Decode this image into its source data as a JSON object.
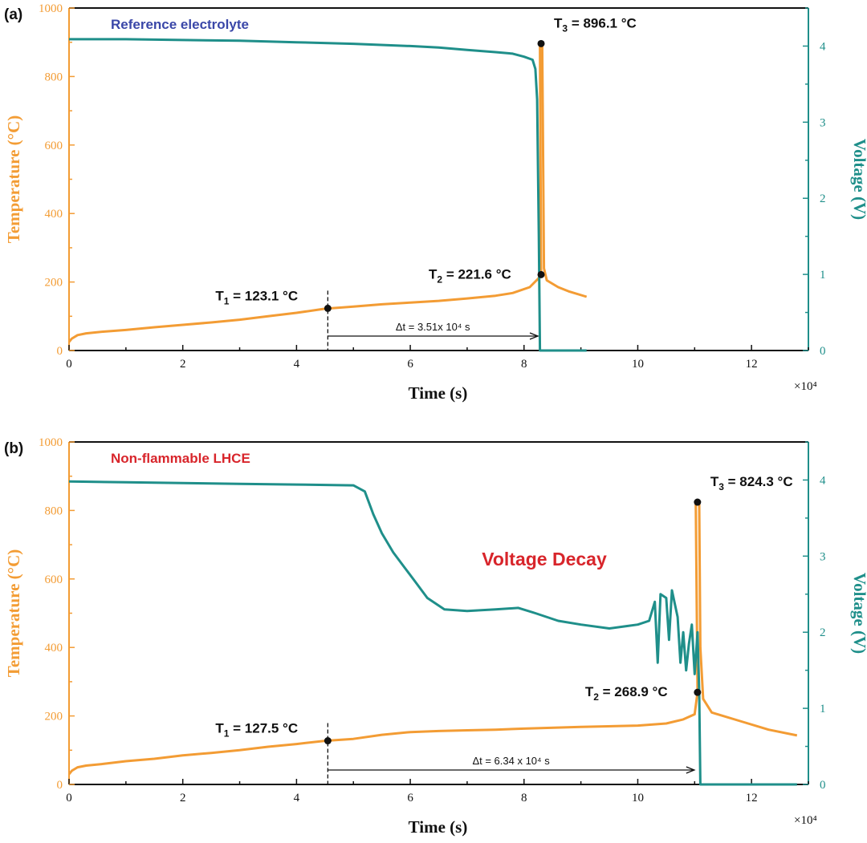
{
  "colors": {
    "temperature": "#f39c34",
    "voltage": "#1f8f8a",
    "axis": "#111111",
    "title_a": "#3a47a8",
    "title_b": "#d8252b",
    "voltage_decay": "#d8252b"
  },
  "chart_data": [
    {
      "type": "line",
      "panel_label": "(a)",
      "title": "Reference electrolyte",
      "xlabel": "Time (s)",
      "x_multiplier": "×10⁴",
      "ylabel_left": "Temperature (°C)",
      "ylabel_right": "Voltage (V)",
      "xlim": [
        0,
        13
      ],
      "ylim_left": [
        0,
        1000
      ],
      "ylim_right": [
        0,
        4.5
      ],
      "x_ticks": [
        "0",
        "2",
        "4",
        "6",
        "8",
        "10",
        "12"
      ],
      "y_left_ticks": [
        "0",
        "200",
        "400",
        "600",
        "800",
        "1000"
      ],
      "y_right_ticks": [
        "0",
        "1",
        "2",
        "3",
        "4"
      ],
      "grid": false,
      "series": [
        {
          "axis": "left",
          "points": [
            [
              0,
              25
            ],
            [
              0.05,
              35
            ],
            [
              0.15,
              45
            ],
            [
              0.3,
              50
            ],
            [
              0.6,
              55
            ],
            [
              1,
              60
            ],
            [
              1.5,
              68
            ],
            [
              2,
              75
            ],
            [
              2.5,
              82
            ],
            [
              3,
              90
            ],
            [
              3.5,
              100
            ],
            [
              4,
              110
            ],
            [
              4.5,
              122
            ],
            [
              5,
              128
            ],
            [
              5.5,
              135
            ],
            [
              6,
              140
            ],
            [
              6.5,
              145
            ],
            [
              7,
              152
            ],
            [
              7.5,
              160
            ],
            [
              7.8,
              168
            ],
            [
              8.1,
              185
            ],
            [
              8.25,
              210
            ],
            [
              8.3,
              221.6
            ],
            [
              8.28,
              896.1
            ],
            [
              8.32,
              896.1
            ],
            [
              8.33,
              700
            ],
            [
              8.35,
              240
            ],
            [
              8.4,
              205
            ],
            [
              8.6,
              185
            ],
            [
              8.8,
              172
            ],
            [
              9.1,
              157
            ]
          ]
        },
        {
          "axis": "right",
          "points": [
            [
              0,
              4.09
            ],
            [
              1,
              4.09
            ],
            [
              2,
              4.08
            ],
            [
              3,
              4.07
            ],
            [
              4,
              4.05
            ],
            [
              5,
              4.03
            ],
            [
              6,
              4
            ],
            [
              6.5,
              3.98
            ],
            [
              7,
              3.95
            ],
            [
              7.5,
              3.92
            ],
            [
              7.8,
              3.9
            ],
            [
              8,
              3.86
            ],
            [
              8.15,
              3.82
            ],
            [
              8.2,
              3.7
            ],
            [
              8.23,
              3.3
            ],
            [
              8.26,
              1.5
            ],
            [
              8.28,
              0
            ],
            [
              8.5,
              0
            ],
            [
              9.1,
              0
            ]
          ]
        }
      ],
      "annotations": {
        "t1": "123.1 °C",
        "t2": "221.6 °C",
        "t3": "896.1 °C",
        "delta_t": "Δt = 3.51x 10⁴ s",
        "t_prefix": "T",
        "t1_sub": "1",
        "t2_sub": "2",
        "t3_sub": "3",
        "eq": " = "
      },
      "markers": [
        [
          4.55,
          123.1
        ],
        [
          8.3,
          221.6
        ],
        [
          8.3,
          896.1
        ]
      ]
    },
    {
      "type": "line",
      "panel_label": "(b)",
      "title": "Non-flammable LHCE",
      "xlabel": "Time (s)",
      "x_multiplier": "×10⁴",
      "ylabel_left": "Temperature (°C)",
      "ylabel_right": "Voltage (V)",
      "xlim": [
        0,
        13
      ],
      "ylim_left": [
        0,
        1000
      ],
      "ylim_right": [
        0,
        4.5
      ],
      "x_ticks": [
        "0",
        "2",
        "4",
        "6",
        "8",
        "10",
        "12"
      ],
      "y_left_ticks": [
        "0",
        "200",
        "400",
        "600",
        "800",
        "1000"
      ],
      "y_right_ticks": [
        "0",
        "1",
        "2",
        "3",
        "4"
      ],
      "grid": false,
      "series": [
        {
          "axis": "left",
          "points": [
            [
              0,
              30
            ],
            [
              0.05,
              40
            ],
            [
              0.15,
              50
            ],
            [
              0.3,
              55
            ],
            [
              0.6,
              60
            ],
            [
              1,
              68
            ],
            [
              1.5,
              75
            ],
            [
              2,
              85
            ],
            [
              2.5,
              92
            ],
            [
              3,
              100
            ],
            [
              3.5,
              110
            ],
            [
              4,
              118
            ],
            [
              4.5,
              127.5
            ],
            [
              5,
              133
            ],
            [
              5.5,
              145
            ],
            [
              6,
              153
            ],
            [
              6.5,
              156
            ],
            [
              7,
              158
            ],
            [
              7.5,
              160
            ],
            [
              8,
              163
            ],
            [
              9,
              168
            ],
            [
              10,
              172
            ],
            [
              10.5,
              178
            ],
            [
              10.8,
              190
            ],
            [
              11,
              205
            ],
            [
              11.05,
              268.9
            ],
            [
              11.02,
              824.3
            ],
            [
              11.08,
              824.3
            ],
            [
              11.1,
              400
            ],
            [
              11.15,
              250
            ],
            [
              11.3,
              210
            ],
            [
              11.8,
              185
            ],
            [
              12.3,
              160
            ],
            [
              12.8,
              143
            ]
          ]
        },
        {
          "axis": "right",
          "points": [
            [
              0,
              3.98
            ],
            [
              1,
              3.97
            ],
            [
              2,
              3.96
            ],
            [
              3,
              3.95
            ],
            [
              4,
              3.94
            ],
            [
              5,
              3.93
            ],
            [
              5.2,
              3.85
            ],
            [
              5.35,
              3.55
            ],
            [
              5.5,
              3.3
            ],
            [
              5.7,
              3.05
            ],
            [
              5.9,
              2.85
            ],
            [
              6.1,
              2.65
            ],
            [
              6.3,
              2.45
            ],
            [
              6.6,
              2.3
            ],
            [
              7,
              2.28
            ],
            [
              7.5,
              2.3
            ],
            [
              7.9,
              2.32
            ],
            [
              8.2,
              2.25
            ],
            [
              8.6,
              2.15
            ],
            [
              9,
              2.1
            ],
            [
              9.5,
              2.05
            ],
            [
              9.8,
              2.08
            ],
            [
              10,
              2.1
            ],
            [
              10.2,
              2.15
            ],
            [
              10.3,
              2.4
            ],
            [
              10.35,
              1.6
            ],
            [
              10.4,
              2.5
            ],
            [
              10.5,
              2.45
            ],
            [
              10.55,
              1.9
            ],
            [
              10.6,
              2.55
            ],
            [
              10.7,
              2.2
            ],
            [
              10.75,
              1.6
            ],
            [
              10.8,
              2.0
            ],
            [
              10.85,
              1.5
            ],
            [
              10.9,
              1.85
            ],
            [
              10.95,
              2.1
            ],
            [
              11.0,
              1.45
            ],
            [
              11.05,
              2.0
            ],
            [
              11.08,
              1.2
            ],
            [
              11.1,
              0
            ],
            [
              12.8,
              0
            ]
          ]
        }
      ],
      "annotations": {
        "t1": "127.5 °C",
        "t2": "268.9 °C",
        "t3": "824.3 °C",
        "delta_t": "Δt = 6.34 x 10⁴ s",
        "voltage_decay": "Voltage Decay",
        "t_prefix": "T",
        "t1_sub": "1",
        "t2_sub": "2",
        "t3_sub": "3",
        "eq": " = "
      },
      "markers": [
        [
          4.55,
          127.5
        ],
        [
          11.05,
          268.9
        ],
        [
          11.05,
          824.3
        ]
      ]
    }
  ]
}
